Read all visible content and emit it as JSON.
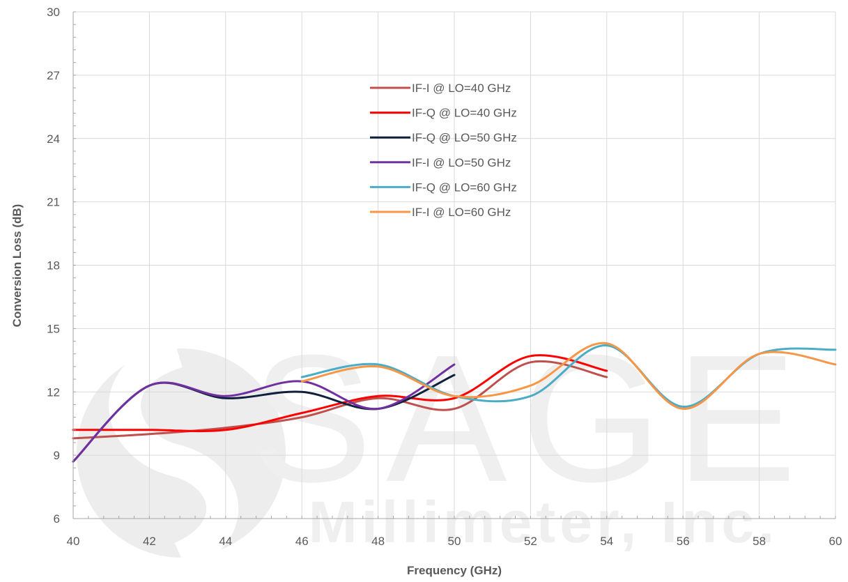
{
  "chart_data": {
    "type": "line",
    "title": "",
    "xlabel": "Frequency (GHz)",
    "ylabel": "Conversion Loss (dB)",
    "xlim": [
      40,
      60
    ],
    "ylim": [
      6,
      30
    ],
    "xticks": [
      40,
      42,
      44,
      46,
      48,
      50,
      52,
      54,
      56,
      58,
      60
    ],
    "yticks": [
      6,
      9,
      12,
      15,
      18,
      21,
      24,
      27,
      30
    ],
    "xtick_labels": [
      "40",
      "42",
      "44",
      "46",
      "48",
      "50",
      "52",
      "54",
      "56",
      "58",
      "60"
    ],
    "ytick_labels": [
      "6",
      "9",
      "12",
      "15",
      "18",
      "21",
      "24",
      "27",
      "30"
    ],
    "grid": true,
    "legend_position": "top-center",
    "watermark": {
      "line1": "SAGE",
      "line2": "Millimeter, Inc."
    },
    "series": [
      {
        "name": "IF-I @ LO=40 GHz",
        "color": "#c0504d",
        "x": [
          40,
          42,
          44,
          46,
          48,
          50,
          52,
          54
        ],
        "y": [
          9.8,
          10.0,
          10.3,
          10.8,
          11.7,
          11.2,
          13.4,
          12.7
        ]
      },
      {
        "name": "IF-Q @ LO=40 GHz",
        "color": "#ff0000",
        "x": [
          40,
          42,
          44,
          46,
          48,
          50,
          52,
          54
        ],
        "y": [
          10.2,
          10.2,
          10.2,
          11.0,
          11.8,
          11.7,
          13.7,
          13.0
        ]
      },
      {
        "name": "IF-Q @ LO=50 GHz",
        "color": "#0f1f3d",
        "x": [
          40,
          42,
          44,
          46,
          48,
          50
        ],
        "y": [
          8.7,
          12.3,
          11.7,
          12.0,
          11.2,
          12.8
        ]
      },
      {
        "name": "IF-I @ LO=50 GHz",
        "color": "#7030a0",
        "x": [
          40,
          42,
          44,
          46,
          48,
          50
        ],
        "y": [
          8.7,
          12.3,
          11.8,
          12.5,
          11.2,
          13.3
        ]
      },
      {
        "name": "IF-Q @ LO=60 GHz",
        "color": "#4bacc6",
        "x": [
          46,
          48,
          50,
          52,
          54,
          56,
          58,
          60
        ],
        "y": [
          12.7,
          13.3,
          11.8,
          11.8,
          14.2,
          11.3,
          13.8,
          14.0
        ]
      },
      {
        "name": "IF-I @ LO=60 GHz",
        "color": "#f79646",
        "x": [
          46,
          48,
          50,
          52,
          54,
          56,
          58,
          60
        ],
        "y": [
          12.5,
          13.2,
          11.8,
          12.3,
          14.3,
          11.2,
          13.8,
          13.3
        ]
      }
    ]
  }
}
